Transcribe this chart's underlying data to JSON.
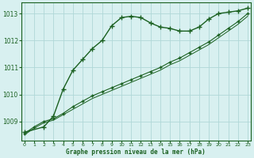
{
  "xlabel": "Graphe pression niveau de la mer (hPa)",
  "background_color": "#d8f0f0",
  "grid_color": "#b0d8d8",
  "line_color": "#1a6020",
  "hours": [
    0,
    1,
    2,
    3,
    4,
    5,
    6,
    7,
    8,
    9,
    10,
    11,
    12,
    13,
    14,
    15,
    16,
    17,
    18,
    19,
    20,
    21,
    22,
    23
  ],
  "series1": [
    1008.6,
    null,
    1008.8,
    1009.2,
    1010.2,
    1010.9,
    1011.3,
    1011.7,
    1012.0,
    1012.55,
    1012.85,
    1012.9,
    1012.85,
    1012.65,
    1012.5,
    1012.45,
    1012.35,
    1012.35,
    1012.5,
    1012.8,
    1013.0,
    1013.05,
    1013.1,
    1013.2
  ],
  "series2": [
    1008.55,
    1008.8,
    1009.0,
    1009.1,
    1009.3,
    1009.55,
    1009.75,
    1009.95,
    1010.1,
    1010.25,
    1010.4,
    1010.55,
    1010.7,
    1010.85,
    1011.0,
    1011.2,
    1011.35,
    1011.55,
    1011.75,
    1011.95,
    1012.2,
    1012.45,
    1012.7,
    1013.0
  ],
  "series3": [
    1008.5,
    1008.75,
    1008.95,
    1009.05,
    1009.25,
    1009.45,
    1009.65,
    1009.85,
    1010.0,
    1010.15,
    1010.3,
    1010.45,
    1010.6,
    1010.75,
    1010.9,
    1011.1,
    1011.25,
    1011.45,
    1011.65,
    1011.85,
    1012.1,
    1012.35,
    1012.6,
    1012.9
  ],
  "ylim": [
    1008.3,
    1013.4
  ],
  "yticks": [
    1009,
    1010,
    1011,
    1012,
    1013
  ],
  "xticks": [
    0,
    1,
    2,
    3,
    4,
    5,
    6,
    7,
    8,
    9,
    10,
    11,
    12,
    13,
    14,
    15,
    16,
    17,
    18,
    19,
    20,
    21,
    22,
    23
  ]
}
